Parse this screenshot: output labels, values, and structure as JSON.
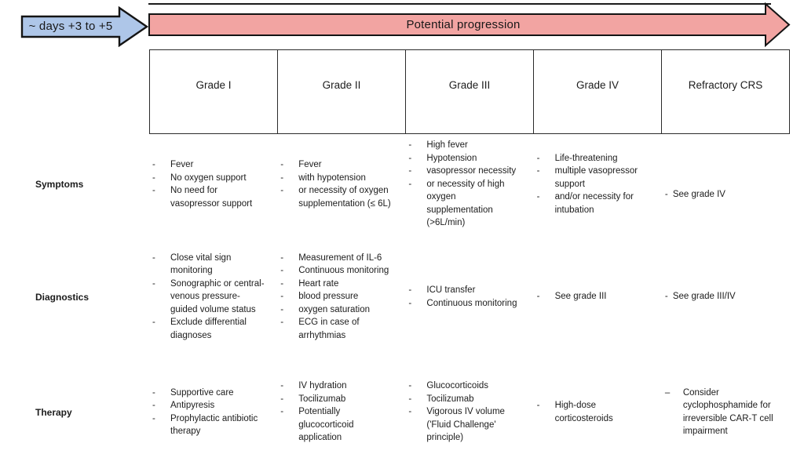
{
  "timeline_arrow": {
    "label": "~ days +3 to +5",
    "fill": "#aec6e8"
  },
  "progression_arrow": {
    "label": "Potential progression",
    "fill": "#f2a4a2"
  },
  "table": {
    "default_marker": "-",
    "columns": [
      "Grade I",
      "Grade II",
      "Grade III",
      "Grade IV",
      "Refractory CRS"
    ],
    "rows": [
      {
        "label": "Symptoms",
        "cells": [
          {
            "items": [
              "Fever",
              "No oxygen support",
              "No need for vasopressor support"
            ]
          },
          {
            "items": [
              "Fever",
              "with hypotension",
              "or necessity of oxygen supplementation (≤ 6L)"
            ]
          },
          {
            "items": [
              "High fever",
              "Hypotension",
              "vasopressor necessity",
              "or necessity of high oxygen supplementation (>6L/min)"
            ]
          },
          {
            "items": [
              "Life-threatening",
              "multiple vasopressor support",
              "and/or necessity for intubation"
            ]
          },
          {
            "items": [
              "See grade IV"
            ],
            "style": "tight"
          }
        ]
      },
      {
        "label": "Diagnostics",
        "cells": [
          {
            "items": [
              "Close vital sign monitoring",
              "Sonographic or central-venous pressure-guided volume status",
              "Exclude differential diagnoses"
            ]
          },
          {
            "items": [
              "Measurement of IL-6",
              "Continuous monitoring",
              "Heart rate",
              "blood pressure",
              "oxygen saturation",
              "ECG in case of arrhythmias"
            ]
          },
          {
            "items": [
              "ICU transfer",
              "Continuous monitoring"
            ]
          },
          {
            "items": [
              "See grade III"
            ]
          },
          {
            "items": [
              "See grade III/IV"
            ],
            "style": "tight"
          }
        ]
      },
      {
        "label": "Therapy",
        "cells": [
          {
            "items": [
              "Supportive care",
              "Antipyresis",
              "Prophylactic antibiotic therapy"
            ]
          },
          {
            "items": [
              "IV hydration",
              "Tocilizumab",
              "Potentially glucocorticoid application"
            ]
          },
          {
            "items": [
              "Glucocorticoids",
              "Tocilizumab",
              "Vigorous IV volume ('Fluid Challenge' principle)"
            ]
          },
          {
            "items": [
              "High-dose corticosteroids"
            ]
          },
          {
            "items": [
              "Consider cyclophosphamide for irreversible CAR-T cell impairment"
            ],
            "marker": "–"
          }
        ]
      }
    ]
  }
}
